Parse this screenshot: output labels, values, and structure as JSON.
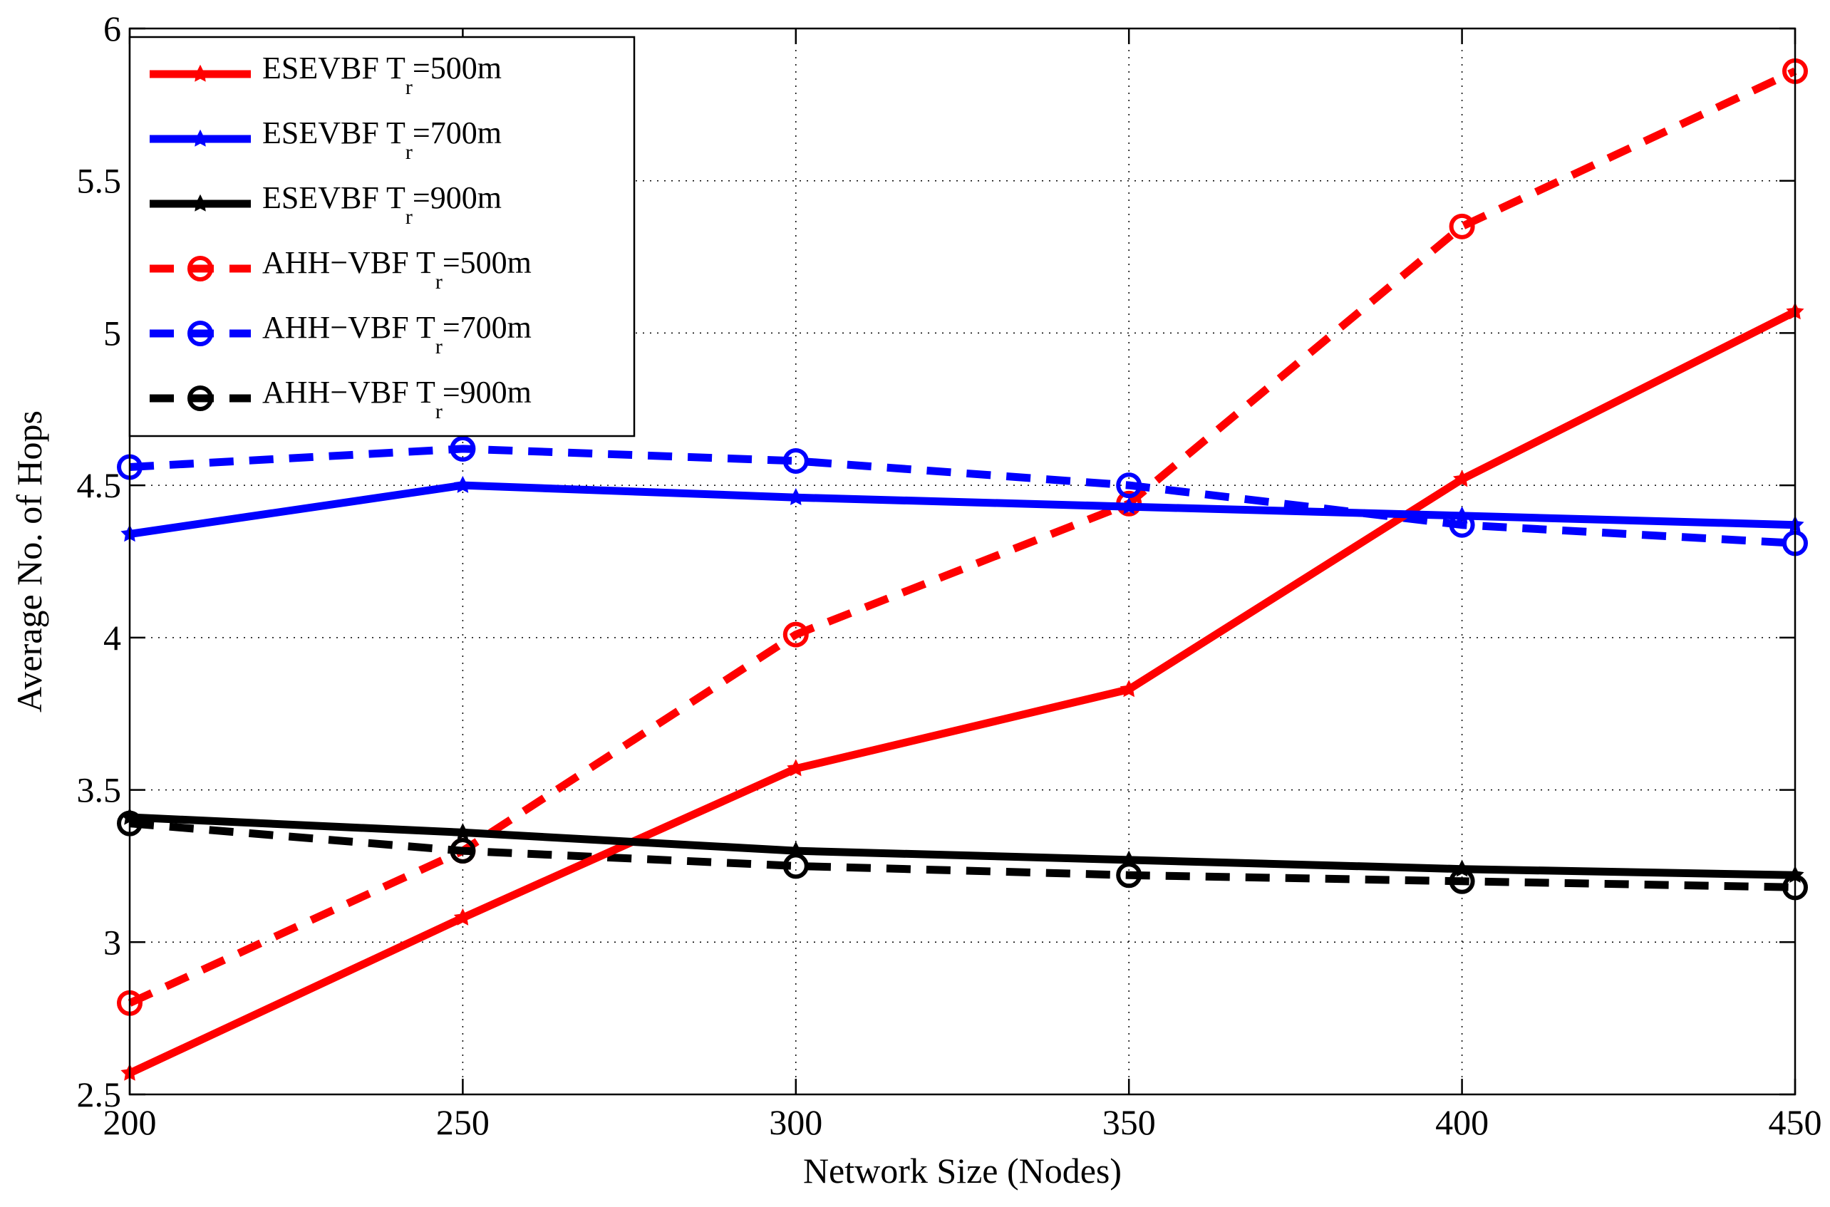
{
  "chart_data": {
    "type": "line",
    "xlabel": "Network Size (Nodes)",
    "ylabel": "Average No. of Hops",
    "xlim": [
      200,
      450
    ],
    "ylim": [
      2.5,
      6
    ],
    "xticks": [
      200,
      250,
      300,
      350,
      400,
      450
    ],
    "yticks": [
      2.5,
      3,
      3.5,
      4,
      4.5,
      5,
      5.5,
      6
    ],
    "xtick_labels": [
      "200",
      "250",
      "300",
      "350",
      "400",
      "450"
    ],
    "ytick_labels": [
      "2.5",
      "3",
      "3.5",
      "4",
      "4.5",
      "5",
      "5.5",
      "6"
    ],
    "grid": true,
    "legend_position": "top-left",
    "x": [
      200,
      250,
      300,
      350,
      400,
      450
    ],
    "series": [
      {
        "name": "ESEVBF T",
        "sub": "r",
        "suffix": "=500m",
        "color": "#ff0000",
        "dash": "solid",
        "marker": "star",
        "values": [
          2.57,
          3.08,
          3.57,
          3.83,
          4.52,
          5.07
        ]
      },
      {
        "name": "ESEVBF T",
        "sub": "r",
        "suffix": "=700m",
        "color": "#0000ff",
        "dash": "solid",
        "marker": "star",
        "values": [
          4.34,
          4.5,
          4.46,
          4.43,
          4.4,
          4.37
        ]
      },
      {
        "name": "ESEVBF T",
        "sub": "r",
        "suffix": "=900m",
        "color": "#000000",
        "dash": "solid",
        "marker": "star",
        "values": [
          3.41,
          3.36,
          3.3,
          3.27,
          3.24,
          3.22
        ]
      },
      {
        "name": "AHH−VBF T",
        "sub": "r",
        "suffix": "=500m",
        "color": "#ff0000",
        "dash": "dashed",
        "marker": "circle",
        "values": [
          2.8,
          3.3,
          4.01,
          4.44,
          5.35,
          5.86
        ]
      },
      {
        "name": "AHH−VBF T",
        "sub": "r",
        "suffix": "=700m",
        "color": "#0000ff",
        "dash": "dashed",
        "marker": "circle",
        "values": [
          4.56,
          4.62,
          4.58,
          4.5,
          4.37,
          4.31
        ]
      },
      {
        "name": "AHH−VBF T",
        "sub": "r",
        "suffix": "=900m",
        "color": "#000000",
        "dash": "dashed",
        "marker": "circle",
        "values": [
          3.39,
          3.3,
          3.25,
          3.22,
          3.2,
          3.18
        ]
      }
    ]
  }
}
